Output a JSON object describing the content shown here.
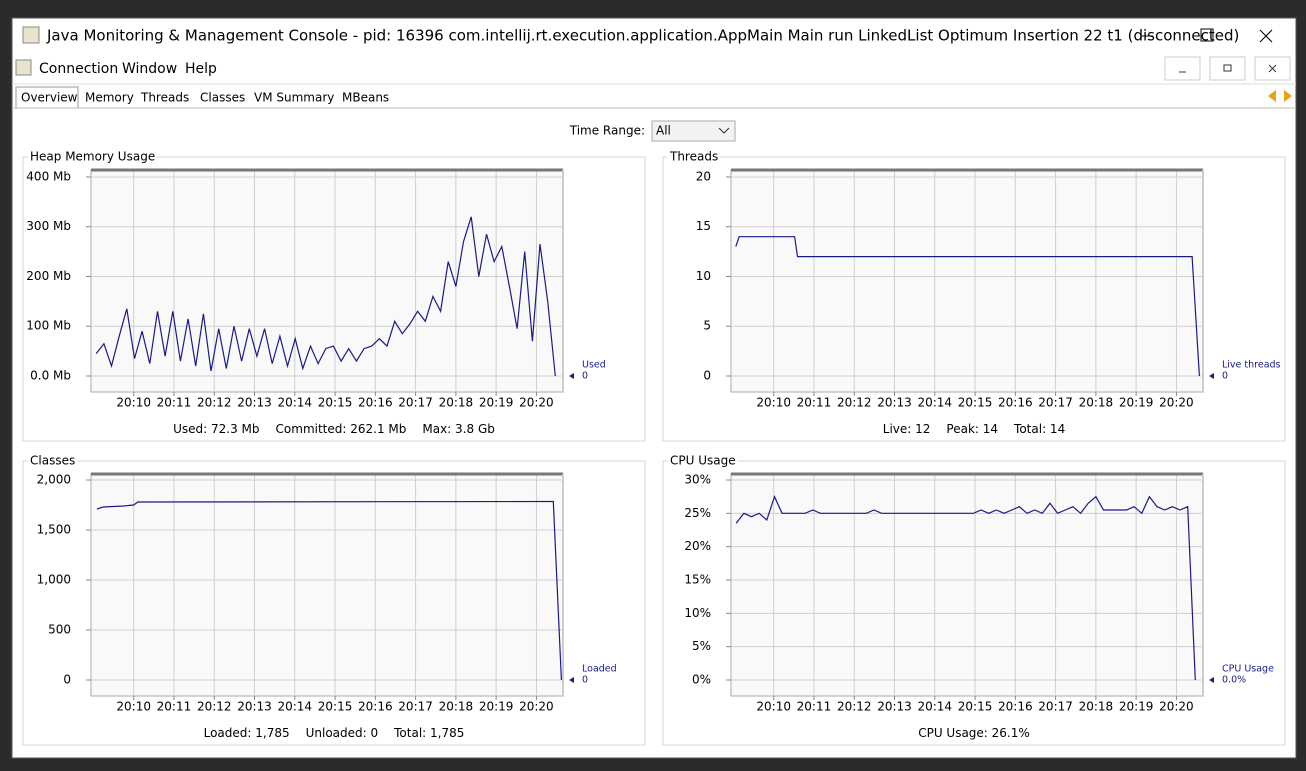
{
  "window": {
    "title": "Java Monitoring & Management Console - pid: 16396 com.intellij.rt.execution.application.AppMain Main run LinkedList Optimum Insertion 22 t1 (disconnected)",
    "menu": [
      "Connection",
      "Window",
      "Help"
    ],
    "tabs": [
      "Overview",
      "Memory",
      "Threads",
      "Classes",
      "VM Summary",
      "MBeans"
    ],
    "time_range": {
      "label": "Time Range:",
      "value": "All"
    }
  },
  "charts": [
    {
      "type": "line",
      "title": "Heap Memory Usage",
      "x": [
        1209.07,
        1209.26,
        1209.45,
        1209.64,
        1209.83,
        1210.02,
        1210.21,
        1210.4,
        1210.59,
        1210.78,
        1210.97,
        1211.16,
        1211.35,
        1211.54,
        1211.73,
        1211.92,
        1212.11,
        1212.3,
        1212.49,
        1212.68,
        1212.87,
        1213.06,
        1213.25,
        1213.44,
        1213.63,
        1213.82,
        1214.01,
        1214.2,
        1214.39,
        1214.58,
        1214.77,
        1214.96,
        1215.15,
        1215.34,
        1215.53,
        1215.72,
        1215.91,
        1216.1,
        1216.29,
        1216.48,
        1216.67,
        1216.86,
        1217.05,
        1217.24,
        1217.43,
        1217.62,
        1217.81,
        1218.0,
        1218.19,
        1218.38,
        1218.57,
        1218.76,
        1218.95,
        1219.14,
        1219.33,
        1219.52,
        1219.71,
        1219.9,
        1220.09,
        1220.28,
        1220.47
      ],
      "series": [
        {
          "name": "Used",
          "color": "#1a1a8a",
          "current": 0,
          "values": [
            45,
            65,
            20,
            80,
            135,
            35,
            90,
            25,
            130,
            40,
            130,
            30,
            115,
            20,
            125,
            10,
            95,
            15,
            100,
            30,
            95,
            40,
            95,
            25,
            80,
            20,
            75,
            15,
            60,
            25,
            55,
            60,
            30,
            55,
            30,
            55,
            60,
            75,
            60,
            110,
            85,
            105,
            130,
            110,
            160,
            130,
            230,
            180,
            270,
            320,
            200,
            285,
            230,
            260,
            180,
            95,
            250,
            70,
            265,
            150,
            0
          ]
        }
      ],
      "xlim": [
        1208.94,
        1220.66
      ],
      "ylim": [
        0,
        414
      ],
      "xticks": [
        {
          "value": 1210,
          "label": "20:10"
        },
        {
          "value": 1211,
          "label": "20:11"
        },
        {
          "value": 1212,
          "label": "20:12"
        },
        {
          "value": 1213,
          "label": "20:13"
        },
        {
          "value": 1214,
          "label": "20:14"
        },
        {
          "value": 1215,
          "label": "20:15"
        },
        {
          "value": 1216,
          "label": "20:16"
        },
        {
          "value": 1217,
          "label": "20:17"
        },
        {
          "value": 1218,
          "label": "20:18"
        },
        {
          "value": 1219,
          "label": "20:19"
        },
        {
          "value": 1220,
          "label": "20:20"
        }
      ],
      "yticks": [
        {
          "value": 0,
          "label": "0.0 Mb"
        },
        {
          "value": 100,
          "label": "100 Mb"
        },
        {
          "value": 200,
          "label": "200 Mb"
        },
        {
          "value": 300,
          "label": "300 Mb"
        },
        {
          "value": 400,
          "label": "400 Mb"
        }
      ],
      "grid": true,
      "summary": [
        "Used: 72.3 Mb",
        "Committed: 262.1 Mb",
        "Max: 3.8 Gb"
      ]
    },
    {
      "type": "line",
      "title": "Threads",
      "x": [
        1209.06,
        1209.14,
        1210.52,
        1210.59,
        1220.39,
        1220.57
      ],
      "series": [
        {
          "name": "Live threads",
          "color": "#1a1a8a",
          "current": 0,
          "values": [
            13,
            14,
            14,
            12,
            12,
            0
          ]
        }
      ],
      "xlim": [
        1208.94,
        1220.66
      ],
      "ylim": [
        0,
        20.7
      ],
      "xticks": [
        {
          "value": 1210,
          "label": "20:10"
        },
        {
          "value": 1211,
          "label": "20:11"
        },
        {
          "value": 1212,
          "label": "20:12"
        },
        {
          "value": 1213,
          "label": "20:13"
        },
        {
          "value": 1214,
          "label": "20:14"
        },
        {
          "value": 1215,
          "label": "20:15"
        },
        {
          "value": 1216,
          "label": "20:16"
        },
        {
          "value": 1217,
          "label": "20:17"
        },
        {
          "value": 1218,
          "label": "20:18"
        },
        {
          "value": 1219,
          "label": "20:19"
        },
        {
          "value": 1220,
          "label": "20:20"
        }
      ],
      "yticks": [
        0,
        5,
        10,
        15,
        20
      ],
      "grid": true,
      "summary": [
        "Live: 12",
        "Peak: 14",
        "Total: 14"
      ]
    },
    {
      "type": "line",
      "title": "Classes",
      "x": [
        1209.09,
        1209.24,
        1209.75,
        1210.0,
        1210.1,
        1220.42,
        1220.62
      ],
      "series": [
        {
          "name": "Loaded",
          "color": "#1a1a8a",
          "current": 0,
          "values": [
            1710,
            1730,
            1740,
            1750,
            1780,
            1785,
            0
          ]
        }
      ],
      "xlim": [
        1208.94,
        1220.66
      ],
      "ylim": [
        0,
        2060
      ],
      "xticks": [
        {
          "value": 1210,
          "label": "20:10"
        },
        {
          "value": 1211,
          "label": "20:11"
        },
        {
          "value": 1212,
          "label": "20:12"
        },
        {
          "value": 1213,
          "label": "20:13"
        },
        {
          "value": 1214,
          "label": "20:14"
        },
        {
          "value": 1215,
          "label": "20:15"
        },
        {
          "value": 1216,
          "label": "20:16"
        },
        {
          "value": 1217,
          "label": "20:17"
        },
        {
          "value": 1218,
          "label": "20:18"
        },
        {
          "value": 1219,
          "label": "20:19"
        },
        {
          "value": 1220,
          "label": "20:20"
        }
      ],
      "yticks": [
        0,
        500,
        {
          "value": 1000,
          "label": "1,000"
        },
        {
          "value": 1500,
          "label": "1,500"
        },
        {
          "value": 2000,
          "label": "2,000"
        }
      ],
      "grid": true,
      "summary": [
        "Loaded: 1,785",
        "Unloaded: 0",
        "Total: 1,785"
      ]
    },
    {
      "type": "line",
      "title": "CPU Usage",
      "x": [
        1209.07,
        1209.26,
        1209.45,
        1209.64,
        1209.83,
        1210.02,
        1210.21,
        1210.4,
        1210.59,
        1210.78,
        1210.97,
        1211.16,
        1211.35,
        1211.54,
        1211.73,
        1211.92,
        1212.11,
        1212.3,
        1212.49,
        1212.68,
        1212.87,
        1213.06,
        1213.25,
        1213.44,
        1213.63,
        1213.82,
        1214.01,
        1214.2,
        1214.39,
        1214.58,
        1214.77,
        1214.96,
        1215.15,
        1215.34,
        1215.53,
        1215.72,
        1215.91,
        1216.1,
        1216.29,
        1216.48,
        1216.67,
        1216.86,
        1217.05,
        1217.24,
        1217.43,
        1217.62,
        1217.81,
        1218.0,
        1218.19,
        1218.38,
        1218.57,
        1218.76,
        1218.95,
        1219.14,
        1219.33,
        1219.52,
        1219.71,
        1219.9,
        1220.09,
        1220.28,
        1220.47
      ],
      "series": [
        {
          "name": "CPU Usage",
          "color": "#1a1a8a",
          "current": {
            "value": 0,
            "label": "0.0%"
          },
          "values": [
            23.5,
            25,
            24.5,
            25,
            24,
            27.5,
            25,
            25,
            25,
            25,
            25.5,
            25,
            25,
            25,
            25,
            25,
            25,
            25,
            25.5,
            25,
            25,
            25,
            25,
            25,
            25,
            25,
            25,
            25,
            25,
            25,
            25,
            25,
            25.5,
            25,
            25.5,
            25,
            25.5,
            26,
            25,
            25.5,
            25,
            26.5,
            25,
            25.5,
            26,
            25,
            26.5,
            27.5,
            25.5,
            25.5,
            25.5,
            25.5,
            26,
            25,
            27.5,
            26,
            25.5,
            26,
            25.5,
            26,
            0
          ]
        }
      ],
      "xlim": [
        1208.94,
        1220.66
      ],
      "ylim": [
        0,
        30.9
      ],
      "xticks": [
        {
          "value": 1210,
          "label": "20:10"
        },
        {
          "value": 1211,
          "label": "20:11"
        },
        {
          "value": 1212,
          "label": "20:12"
        },
        {
          "value": 1213,
          "label": "20:13"
        },
        {
          "value": 1214,
          "label": "20:14"
        },
        {
          "value": 1215,
          "label": "20:15"
        },
        {
          "value": 1216,
          "label": "20:16"
        },
        {
          "value": 1217,
          "label": "20:17"
        },
        {
          "value": 1218,
          "label": "20:18"
        },
        {
          "value": 1219,
          "label": "20:19"
        },
        {
          "value": 1220,
          "label": "20:20"
        }
      ],
      "yticks": [
        {
          "value": 0,
          "label": "0%"
        },
        {
          "value": 5,
          "label": "5%"
        },
        {
          "value": 10,
          "label": "10%"
        },
        {
          "value": 15,
          "label": "15%"
        },
        {
          "value": 20,
          "label": "20%"
        },
        {
          "value": 25,
          "label": "25%"
        },
        {
          "value": 30,
          "label": "30%"
        }
      ],
      "grid": true,
      "summary": [
        "CPU Usage: 26.1%"
      ]
    }
  ]
}
